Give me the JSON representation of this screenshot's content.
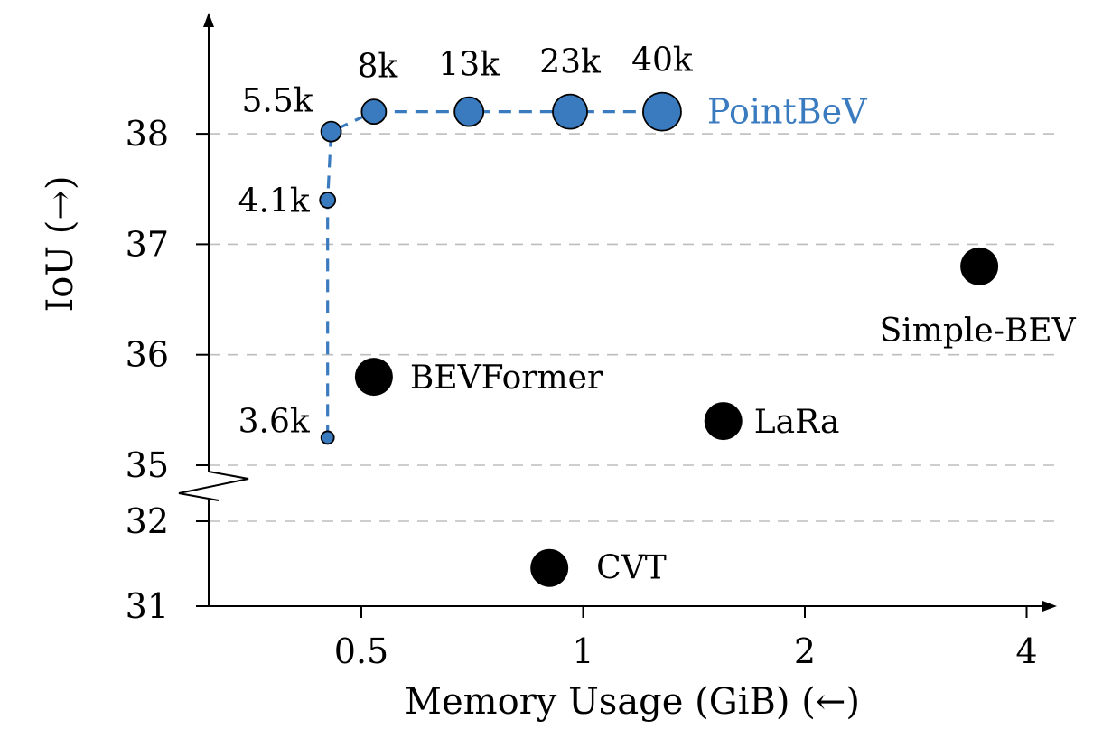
{
  "colors": {
    "pointbev": "#3a7bbf",
    "baseline": "#000000",
    "grid": "#bdbdbd"
  },
  "chart_data": {
    "type": "scatter",
    "title": "",
    "xlabel": "Memory Usage (GiB) (←)",
    "ylabel": "IoU (→)",
    "x_scale": "log2",
    "xlim": [
      0.3,
      5
    ],
    "x_ticks": [
      0.5,
      1,
      2,
      4
    ],
    "x_tick_labels": [
      "0.5",
      "1",
      "2",
      "4"
    ],
    "y_axis_break": [
      32,
      35
    ],
    "y_ticks": [
      31,
      32,
      35,
      36,
      37,
      38
    ],
    "y_tick_labels": [
      "31",
      "32",
      "35",
      "36",
      "37",
      "38"
    ],
    "grid": "horizontal dashed",
    "series": [
      {
        "name": "PointBeV",
        "connected": true,
        "points": [
          {
            "label": "3.6k",
            "x": 0.45,
            "y": 35.25
          },
          {
            "label": "4.1k",
            "x": 0.45,
            "y": 37.4
          },
          {
            "label": "5.5k",
            "x": 0.455,
            "y": 38.02
          },
          {
            "label": "8k",
            "x": 0.52,
            "y": 38.2
          },
          {
            "label": "13k",
            "x": 0.7,
            "y": 38.2
          },
          {
            "label": "23k",
            "x": 0.96,
            "y": 38.2
          },
          {
            "label": "40k",
            "x": 1.28,
            "y": 38.2
          }
        ]
      },
      {
        "connected": false,
        "points": [
          {
            "label": "BEVFormer",
            "x": 0.52,
            "y": 35.8
          },
          {
            "label": "LaRa",
            "x": 1.55,
            "y": 35.4
          },
          {
            "label": "Simple-BEV",
            "x": 3.45,
            "y": 36.8
          },
          {
            "label": "CVT",
            "x": 0.9,
            "y": 31.45
          }
        ]
      }
    ]
  }
}
